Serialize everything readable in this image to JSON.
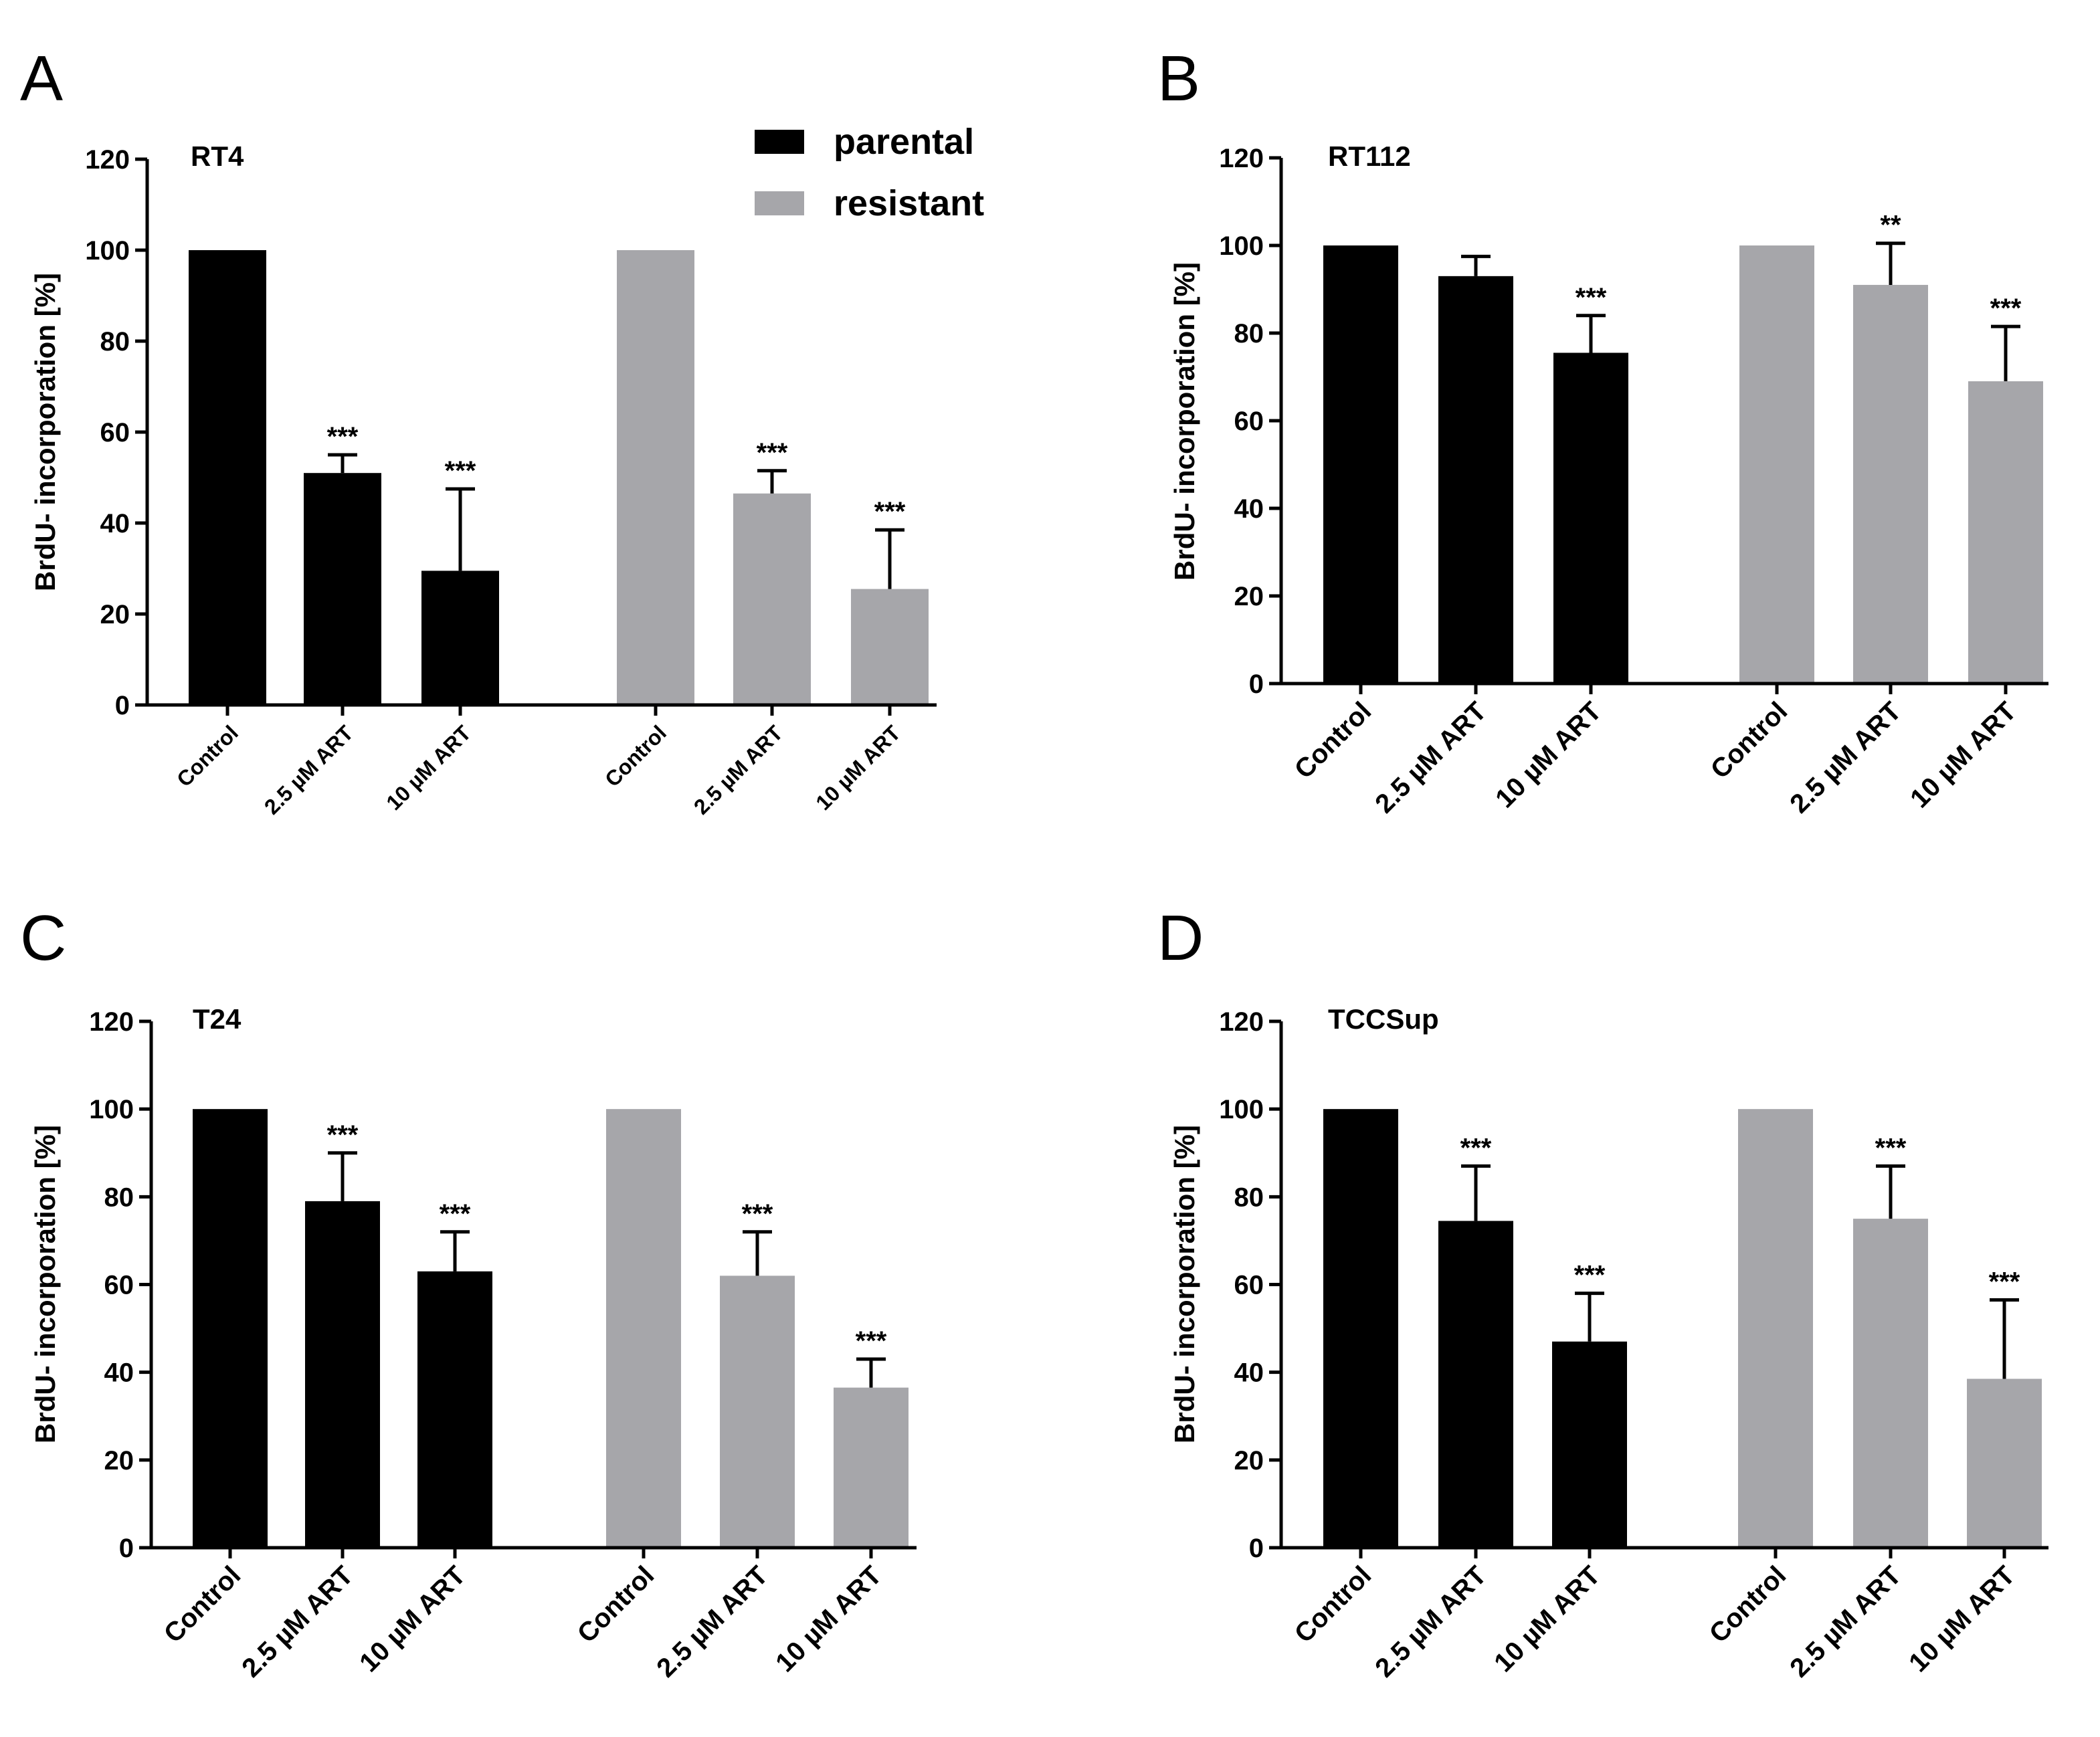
{
  "colors": {
    "parental": "#000000",
    "resistant": "#a6a6aa"
  },
  "legend": {
    "parental": "parental",
    "resistant": "resistant"
  },
  "ylabel": "BrdU- incorporation [%]",
  "chart_data": [
    {
      "panel": "A",
      "type": "bar",
      "title": "RT4",
      "ylabel": "BrdU- incorporation [%]",
      "ylim": [
        0,
        120
      ],
      "yticks": [
        "0",
        "20",
        "40",
        "60",
        "80",
        "100",
        "120"
      ],
      "categories": [
        "Control",
        "2.5 µM ART",
        "10  µM ART"
      ],
      "series": [
        {
          "name": "parental",
          "values": [
            100,
            51,
            29.5
          ],
          "errors": [
            0,
            4,
            18
          ],
          "significance": [
            "",
            "***",
            "***"
          ]
        },
        {
          "name": "resistant",
          "values": [
            100,
            46.5,
            25.5
          ],
          "errors": [
            0,
            5,
            13
          ],
          "significance": [
            "",
            "***",
            "***"
          ]
        }
      ]
    },
    {
      "panel": "B",
      "type": "bar",
      "title": "RT112",
      "ylabel": "BrdU- incorporation [%]",
      "ylim": [
        0,
        120
      ],
      "yticks": [
        "0",
        "20",
        "40",
        "60",
        "80",
        "100",
        "120"
      ],
      "categories": [
        "Control",
        "2.5 µM ART",
        "10 µM ART"
      ],
      "series": [
        {
          "name": "parental",
          "values": [
            100,
            93,
            75.5
          ],
          "errors": [
            0,
            4.5,
            8.5
          ],
          "significance": [
            "",
            "",
            "***"
          ]
        },
        {
          "name": "resistant",
          "values": [
            100,
            91,
            69
          ],
          "errors": [
            0,
            9.5,
            12.5
          ],
          "significance": [
            "",
            "**",
            "***"
          ]
        }
      ]
    },
    {
      "panel": "C",
      "type": "bar",
      "title": "T24",
      "ylabel": "BrdU- incorporation [%]",
      "ylim": [
        0,
        120
      ],
      "yticks": [
        "0",
        "20",
        "40",
        "60",
        "80",
        "100",
        "120"
      ],
      "categories": [
        "Control",
        "2.5 µM ART",
        "10 µM ART"
      ],
      "series": [
        {
          "name": "parental",
          "values": [
            100,
            79,
            63
          ],
          "errors": [
            0,
            11,
            9
          ],
          "significance": [
            "",
            "***",
            "***"
          ]
        },
        {
          "name": "resistant",
          "values": [
            100,
            62,
            36.5
          ],
          "errors": [
            0,
            10,
            6.5
          ],
          "significance": [
            "",
            "***",
            "***"
          ]
        }
      ]
    },
    {
      "panel": "D",
      "type": "bar",
      "title": "TCCSup",
      "ylabel": "BrdU- incorporation [%]",
      "ylim": [
        0,
        120
      ],
      "yticks": [
        "0",
        "20",
        "40",
        "60",
        "80",
        "100",
        "120"
      ],
      "categories": [
        "Control",
        "2.5 µM ART",
        "10 µM ART"
      ],
      "series": [
        {
          "name": "parental",
          "values": [
            100,
            74.5,
            47
          ],
          "errors": [
            0,
            12.5,
            11
          ],
          "significance": [
            "",
            "***",
            "***"
          ]
        },
        {
          "name": "resistant",
          "values": [
            100,
            75,
            38.5
          ],
          "errors": [
            0,
            12,
            18
          ],
          "significance": [
            "",
            "***",
            "***"
          ]
        }
      ]
    }
  ]
}
